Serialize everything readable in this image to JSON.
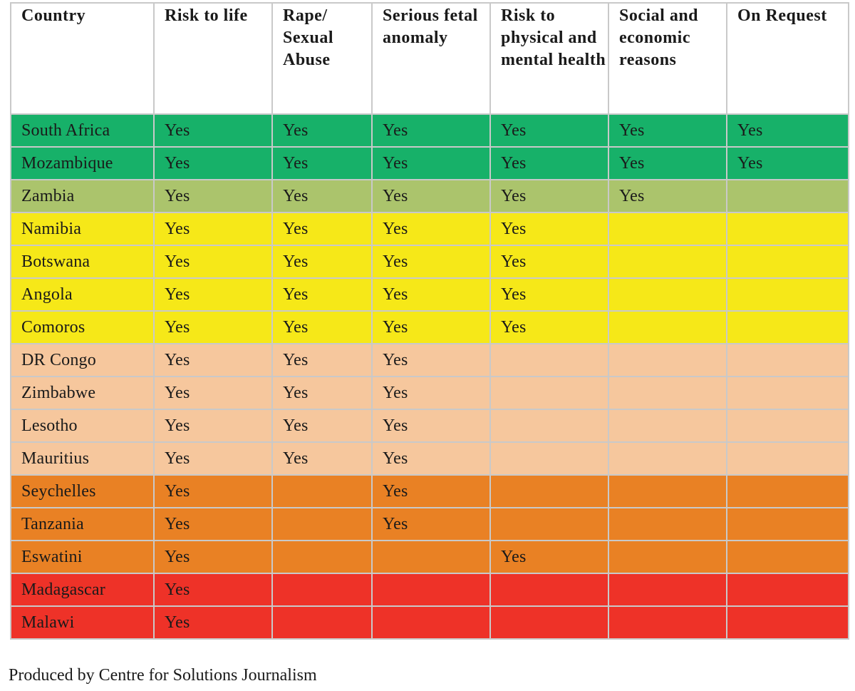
{
  "table": {
    "headers": [
      "Country",
      "Risk to life",
      "Rape/ Sexual Abuse",
      "Serious fetal anomaly",
      "Risk to physical and mental health",
      "Social and economic reasons",
      "On Request"
    ],
    "rows": [
      {
        "color": "#17b169",
        "cells": [
          "South Africa",
          "Yes",
          "Yes",
          "Yes",
          "Yes",
          "Yes",
          "Yes"
        ]
      },
      {
        "color": "#17b169",
        "cells": [
          "Mozambique",
          "Yes",
          "Yes",
          "Yes",
          "Yes",
          "Yes",
          "Yes"
        ]
      },
      {
        "color": "#abc46c",
        "cells": [
          "Zambia",
          "Yes",
          "Yes",
          "Yes",
          "Yes",
          "Yes",
          ""
        ]
      },
      {
        "color": "#f6e818",
        "cells": [
          "Namibia",
          "Yes",
          "Yes",
          "Yes",
          "Yes",
          "",
          ""
        ]
      },
      {
        "color": "#f6e818",
        "cells": [
          "Botswana",
          "Yes",
          "Yes",
          "Yes",
          "Yes",
          "",
          ""
        ]
      },
      {
        "color": "#f6e818",
        "cells": [
          "Angola",
          "Yes",
          "Yes",
          "Yes",
          "Yes",
          "",
          ""
        ]
      },
      {
        "color": "#f6e818",
        "cells": [
          "Comoros",
          "Yes",
          "Yes",
          "Yes",
          "Yes",
          "",
          ""
        ]
      },
      {
        "color": "#f6c79d",
        "cells": [
          "DR Congo",
          "Yes",
          "Yes",
          "Yes",
          "",
          "",
          ""
        ]
      },
      {
        "color": "#f6c79d",
        "cells": [
          "Zimbabwe",
          "Yes",
          "Yes",
          "Yes",
          "",
          "",
          ""
        ]
      },
      {
        "color": "#f6c79d",
        "cells": [
          "Lesotho",
          "Yes",
          "Yes",
          "Yes",
          "",
          "",
          ""
        ]
      },
      {
        "color": "#f6c79d",
        "cells": [
          "Mauritius",
          "Yes",
          "Yes",
          "Yes",
          "",
          "",
          ""
        ]
      },
      {
        "color": "#e98124",
        "cells": [
          "Seychelles",
          "Yes",
          "",
          "Yes",
          "",
          "",
          ""
        ]
      },
      {
        "color": "#e98124",
        "cells": [
          "Tanzania",
          "Yes",
          "",
          "Yes",
          "",
          "",
          ""
        ]
      },
      {
        "color": "#e98124",
        "cells": [
          "Eswatini",
          "Yes",
          "",
          "",
          "Yes",
          "",
          ""
        ]
      },
      {
        "color": "#ee3228",
        "cells": [
          "Madagascar",
          "Yes",
          "",
          "",
          "",
          "",
          ""
        ]
      },
      {
        "color": "#ee3228",
        "cells": [
          "Malawi",
          "Yes",
          "",
          "",
          "",
          "",
          ""
        ]
      }
    ]
  },
  "credit": "Produced by Centre for Solutions Journalism"
}
